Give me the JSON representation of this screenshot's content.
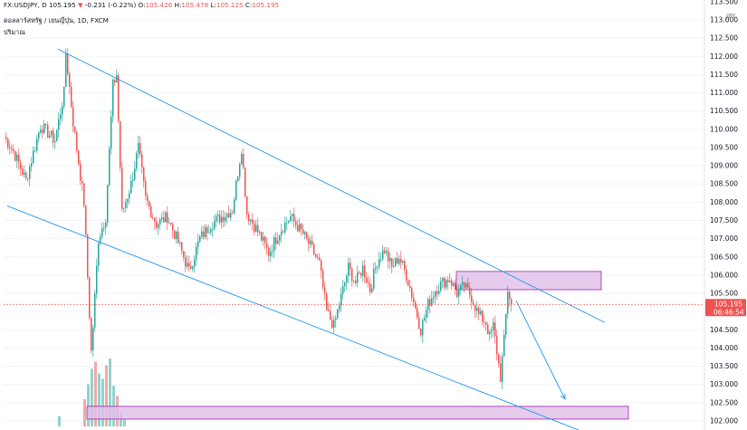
{
  "header": {
    "symbol": "FX:USDJPY, D",
    "price": "105.195",
    "arrow": "▼",
    "change": "-0.231",
    "change_pct": "(-0.22%)",
    "open_label": "O:",
    "open": "105.426",
    "high_label": "H:",
    "high": "105.478",
    "low_label": "L:",
    "low": "105.125",
    "close_label": "C:",
    "close": "105.195",
    "line2": "ดอลลาร์สหรัฐ / เยนญี่ปุ่น, 1D, FXCM",
    "line3": "ปริมาณ"
  },
  "colors": {
    "up": "#26a69a",
    "down": "#ef5350",
    "line": "#2196f3",
    "zone_fill": "#e1bee7",
    "zone_border": "#9c27b0",
    "volume_up": "#80cbc4",
    "volume_down": "#ef9a9a",
    "price_label_bg": "#ef5350",
    "grid": "#f0f3fa",
    "axis_border": "#e0e3eb"
  },
  "chart_data": {
    "type": "candlestick",
    "symbol": "USDJPY",
    "timeframe": "1D",
    "yaxis": {
      "range": [
        101.85,
        113.15
      ],
      "currency_label": "JPY",
      "ticks": [
        "113.000",
        "112.500",
        "112.000",
        "111.500",
        "111.000",
        "110.500",
        "110.000",
        "109.500",
        "109.000",
        "108.500",
        "108.000",
        "107.500",
        "107.000",
        "106.500",
        "106.000",
        "105.500",
        "105.000",
        "104.500",
        "104.000",
        "103.500",
        "103.000",
        "102.500",
        "102.000"
      ],
      "top_partial_tick": "113.500"
    },
    "last_price": 105.195,
    "countdown": "06:46:54",
    "key_closes": [
      {
        "bar": 0,
        "close": 109.8
      },
      {
        "bar": 5,
        "close": 109.4
      },
      {
        "bar": 12,
        "close": 108.6
      },
      {
        "bar": 20,
        "close": 110.1
      },
      {
        "bar": 28,
        "close": 109.7
      },
      {
        "bar": 33,
        "close": 111.0
      },
      {
        "bar": 34,
        "close": 112.1
      },
      {
        "bar": 38,
        "close": 110.2
      },
      {
        "bar": 44,
        "close": 108.0
      },
      {
        "bar": 48,
        "close": 103.9
      },
      {
        "bar": 49,
        "close": 104.6
      },
      {
        "bar": 52,
        "close": 107.0
      },
      {
        "bar": 56,
        "close": 107.6
      },
      {
        "bar": 60,
        "close": 111.2
      },
      {
        "bar": 62,
        "close": 111.5
      },
      {
        "bar": 65,
        "close": 107.7
      },
      {
        "bar": 70,
        "close": 108.5
      },
      {
        "bar": 74,
        "close": 109.5
      },
      {
        "bar": 78,
        "close": 108.1
      },
      {
        "bar": 84,
        "close": 107.4
      },
      {
        "bar": 90,
        "close": 107.6
      },
      {
        "bar": 96,
        "close": 106.9
      },
      {
        "bar": 102,
        "close": 106.1
      },
      {
        "bar": 108,
        "close": 107.0
      },
      {
        "bar": 114,
        "close": 107.4
      },
      {
        "bar": 120,
        "close": 107.6
      },
      {
        "bar": 126,
        "close": 107.8
      },
      {
        "bar": 131,
        "close": 109.5
      },
      {
        "bar": 134,
        "close": 107.7
      },
      {
        "bar": 140,
        "close": 107.2
      },
      {
        "bar": 146,
        "close": 106.6
      },
      {
        "bar": 152,
        "close": 107.2
      },
      {
        "bar": 158,
        "close": 107.6
      },
      {
        "bar": 164,
        "close": 107.2
      },
      {
        "bar": 170,
        "close": 106.7
      },
      {
        "bar": 174,
        "close": 106.3
      },
      {
        "bar": 178,
        "close": 105.0
      },
      {
        "bar": 182,
        "close": 104.6
      },
      {
        "bar": 186,
        "close": 105.4
      },
      {
        "bar": 190,
        "close": 106.2
      },
      {
        "bar": 194,
        "close": 105.8
      },
      {
        "bar": 198,
        "close": 106.2
      },
      {
        "bar": 202,
        "close": 105.6
      },
      {
        "bar": 206,
        "close": 106.4
      },
      {
        "bar": 210,
        "close": 106.7
      },
      {
        "bar": 214,
        "close": 106.2
      },
      {
        "bar": 218,
        "close": 106.5
      },
      {
        "bar": 222,
        "close": 106.0
      },
      {
        "bar": 226,
        "close": 105.3
      },
      {
        "bar": 230,
        "close": 104.5
      },
      {
        "bar": 234,
        "close": 105.2
      },
      {
        "bar": 238,
        "close": 105.6
      },
      {
        "bar": 242,
        "close": 105.8
      },
      {
        "bar": 246,
        "close": 105.9
      },
      {
        "bar": 250,
        "close": 105.5
      },
      {
        "bar": 254,
        "close": 105.7
      },
      {
        "bar": 258,
        "close": 105.4
      },
      {
        "bar": 262,
        "close": 104.9
      },
      {
        "bar": 266,
        "close": 104.7
      },
      {
        "bar": 268,
        "close": 104.3
      },
      {
        "bar": 270,
        "close": 104.6
      },
      {
        "bar": 274,
        "close": 103.2
      },
      {
        "bar": 276,
        "close": 104.2
      },
      {
        "bar": 278,
        "close": 105.6
      },
      {
        "bar": 280,
        "close": 105.2
      }
    ],
    "annotations": {
      "channel_upper": [
        {
          "bar": 30,
          "price": 112.2
        },
        {
          "bar": 332,
          "price": 104.7
        }
      ],
      "channel_lower": [
        {
          "bar": 2,
          "price": 107.9
        },
        {
          "bar": 320,
          "price": 101.7
        }
      ],
      "supply_zone": {
        "bar_from": 250,
        "bar_to": 330,
        "price_top": 106.1,
        "price_bottom": 105.6
      },
      "demand_zone": {
        "bar_from": 46,
        "bar_to": 345,
        "price_top": 102.4,
        "price_bottom": 102.05
      },
      "projection_arrow": [
        {
          "bar": 283,
          "price": 105.3
        },
        {
          "bar": 310,
          "price": 102.6
        }
      ]
    },
    "volume": {
      "bars": [
        {
          "bar": 30,
          "value": 0.15
        },
        {
          "bar": 44,
          "value": 0.4
        },
        {
          "bar": 46,
          "value": 0.62
        },
        {
          "bar": 48,
          "value": 0.85
        },
        {
          "bar": 50,
          "value": 0.95
        },
        {
          "bar": 52,
          "value": 0.78
        },
        {
          "bar": 54,
          "value": 0.7
        },
        {
          "bar": 56,
          "value": 0.9
        },
        {
          "bar": 58,
          "value": 1.0
        },
        {
          "bar": 60,
          "value": 0.6
        },
        {
          "bar": 62,
          "value": 0.45
        },
        {
          "bar": 64,
          "value": 0.2
        },
        {
          "bar": 66,
          "value": 0.1
        }
      ]
    }
  }
}
